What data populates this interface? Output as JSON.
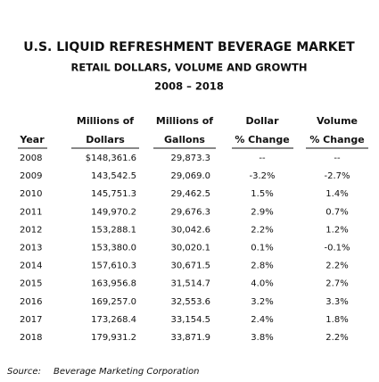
{
  "title": "U.S. LIQUID REFRESHMENT BEVERAGE MARKET",
  "subtitle": "RETAIL DOLLARS, VOLUME AND GROWTH",
  "period": "2008 – 2018",
  "table": {
    "columns": [
      [
        "Year"
      ],
      [
        "Millions of",
        "Dollars"
      ],
      [
        "Millions of",
        "Gallons"
      ],
      [
        "Dollar",
        "% Change"
      ],
      [
        "Volume",
        "% Change"
      ]
    ],
    "rows": [
      [
        "2008",
        "$148,361.6",
        "29,873.3",
        "--",
        "--"
      ],
      [
        "2009",
        "143,542.5",
        "29,069.0",
        "-3.2%",
        "-2.7%"
      ],
      [
        "2010",
        "145,751.3",
        "29,462.5",
        "1.5%",
        "1.4%"
      ],
      [
        "2011",
        "149,970.2",
        "29,676.3",
        "2.9%",
        "0.7%"
      ],
      [
        "2012",
        "153,288.1",
        "30,042.6",
        "2.2%",
        "1.2%"
      ],
      [
        "2013",
        "153,380.0",
        "30,020.1",
        "0.1%",
        "-0.1%"
      ],
      [
        "2014",
        "157,610.3",
        "30,671.5",
        "2.8%",
        "2.2%"
      ],
      [
        "2015",
        "163,956.8",
        "31,514.7",
        "4.0%",
        "2.7%"
      ],
      [
        "2016",
        "169,257.0",
        "32,553.6",
        "3.2%",
        "3.3%"
      ],
      [
        "2017",
        "173,268.4",
        "33,154.5",
        "2.4%",
        "1.8%"
      ],
      [
        "2018",
        "179,931.2",
        "33,871.9",
        "3.8%",
        "2.2%"
      ]
    ]
  },
  "source": {
    "label": "Source:",
    "text": "Beverage Marketing Corporation"
  }
}
